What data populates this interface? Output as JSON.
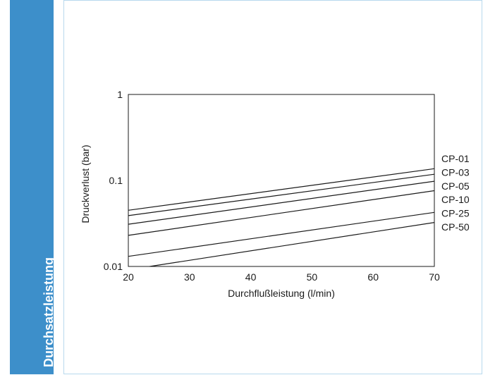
{
  "sidebar": {
    "label": "Durchsatzleistung",
    "color": "#3d8fca"
  },
  "chart_data": {
    "type": "line",
    "title": "",
    "xlabel": "Durchflußleistung (l/min)",
    "ylabel": "Druckverlust (bar)",
    "xlim": [
      20,
      70
    ],
    "ylim": [
      0.01,
      1
    ],
    "yscale": "log",
    "grid": false,
    "x_ticks": [
      20,
      30,
      40,
      50,
      60,
      70
    ],
    "x_tick_labels": [
      "20",
      "30",
      "40",
      "50",
      "60",
      "70"
    ],
    "y_ticks": [
      0.01,
      0.1,
      1
    ],
    "y_tick_labels": [
      "0.01",
      "0.1",
      "1"
    ],
    "legend": "right-labels",
    "series": [
      {
        "name": "CP-01",
        "x": [
          20,
          70
        ],
        "y": [
          0.045,
          0.137
        ]
      },
      {
        "name": "CP-03",
        "x": [
          20,
          70
        ],
        "y": [
          0.039,
          0.118
        ]
      },
      {
        "name": "CP-05",
        "x": [
          20,
          70
        ],
        "y": [
          0.031,
          0.098
        ]
      },
      {
        "name": "CP-10",
        "x": [
          20,
          70
        ],
        "y": [
          0.023,
          0.076
        ]
      },
      {
        "name": "CP-25",
        "x": [
          20,
          70
        ],
        "y": [
          0.0131,
          0.0425
        ]
      },
      {
        "name": "CP-50",
        "x": [
          23.5,
          70
        ],
        "y": [
          0.01,
          0.0325
        ]
      }
    ]
  }
}
